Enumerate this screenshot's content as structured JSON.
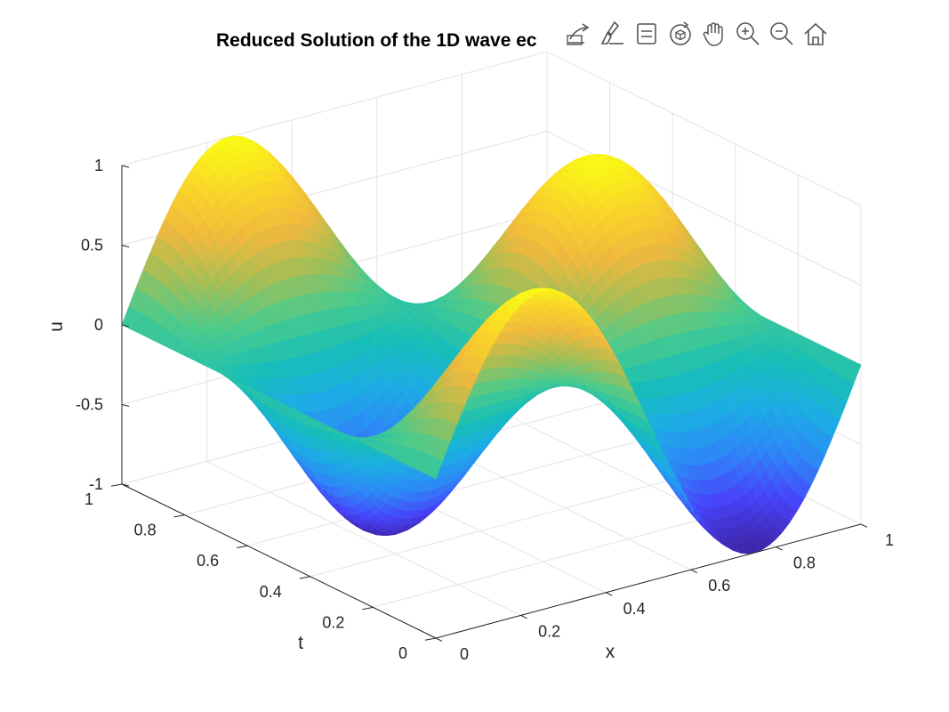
{
  "chart_data": {
    "type": "surface",
    "title": "Reduced Solution of the 1D wave ec",
    "xlabel": "x",
    "ylabel": "t",
    "zlabel": "u",
    "xlim": [
      0,
      1
    ],
    "ylim": [
      0,
      1
    ],
    "zlim": [
      -1,
      1
    ],
    "x_ticks": [
      "0",
      "0.2",
      "0.4",
      "0.6",
      "0.8",
      "1"
    ],
    "y_ticks": [
      "0",
      "0.2",
      "0.4",
      "0.6",
      "0.8",
      "1"
    ],
    "z_ticks": [
      "-1",
      "-0.5",
      "0",
      "0.5",
      "1"
    ],
    "grid": true,
    "colormap": "parula",
    "colormap_stops": [
      "#3e26a8",
      "#4743f9",
      "#2e87f7",
      "#1cade4",
      "#17beb7",
      "#4bcb8d",
      "#a5be56",
      "#f0b93d",
      "#f9d529",
      "#f9fb15"
    ],
    "surface_function": "u(x,t) = sin(2*pi*x) * cos(2*pi*t)",
    "surface_samples": {
      "x": [
        0,
        0.25,
        0.5,
        0.75,
        1
      ],
      "t": [
        0,
        0.25,
        0.5,
        0.75,
        1
      ],
      "u_rows_by_t": [
        [
          0,
          1,
          0,
          -1,
          0
        ],
        [
          0,
          0,
          0,
          0,
          0
        ],
        [
          0,
          -1,
          0,
          1,
          0
        ],
        [
          0,
          0,
          0,
          0,
          0
        ],
        [
          0,
          1,
          0,
          -1,
          0
        ]
      ]
    }
  },
  "toolbar": {
    "items": [
      {
        "name": "export-icon"
      },
      {
        "name": "brush-icon"
      },
      {
        "name": "data-tips-icon"
      },
      {
        "name": "rotate-3d-icon"
      },
      {
        "name": "pan-hand-icon"
      },
      {
        "name": "zoom-in-icon"
      },
      {
        "name": "zoom-out-icon"
      },
      {
        "name": "home-icon"
      }
    ]
  }
}
